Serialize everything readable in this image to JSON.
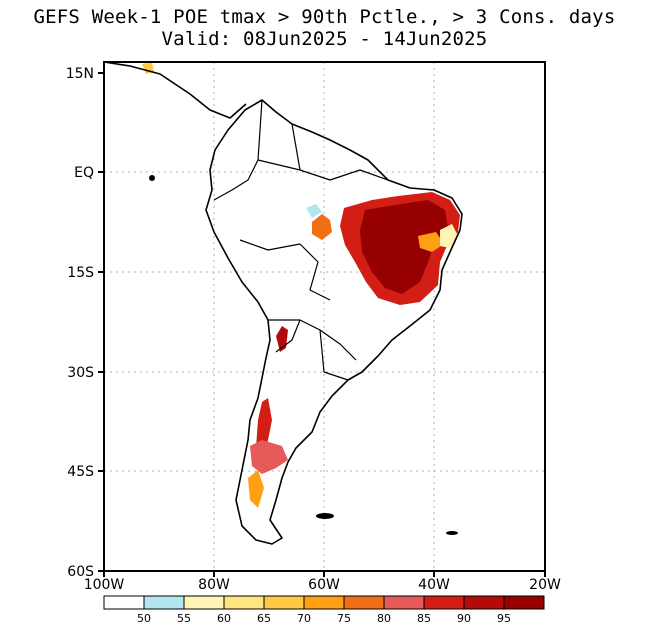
{
  "title": {
    "line1": "GEFS Week-1 POE tmax > 90th Pctle., > 3 Cons. days",
    "line2": "Valid: 08Jun2025 - 14Jun2025"
  },
  "axes": {
    "lat_labels": [
      "15N",
      "EQ",
      "15S",
      "30S",
      "45S",
      "60S"
    ],
    "lon_labels": [
      "100W",
      "80W",
      "60W",
      "40W",
      "20W"
    ],
    "lat_range": [
      -60,
      15
    ],
    "lon_range": [
      -100,
      -20
    ]
  },
  "colorbar": {
    "labels": [
      "50",
      "55",
      "60",
      "65",
      "70",
      "75",
      "80",
      "85",
      "90",
      "95"
    ],
    "colors": [
      "#ffffff",
      "#b4e6f0",
      "#fff5b4",
      "#ffe682",
      "#ffc846",
      "#ffa014",
      "#f06e14",
      "#e65a5a",
      "#d21e14",
      "#b40a0a",
      "#960000"
    ]
  },
  "map": {
    "regions": [
      {
        "name": "northeast-brazil",
        "level": 95
      },
      {
        "name": "central-chile",
        "level": 90
      },
      {
        "name": "patagonia",
        "level": 85
      }
    ]
  }
}
